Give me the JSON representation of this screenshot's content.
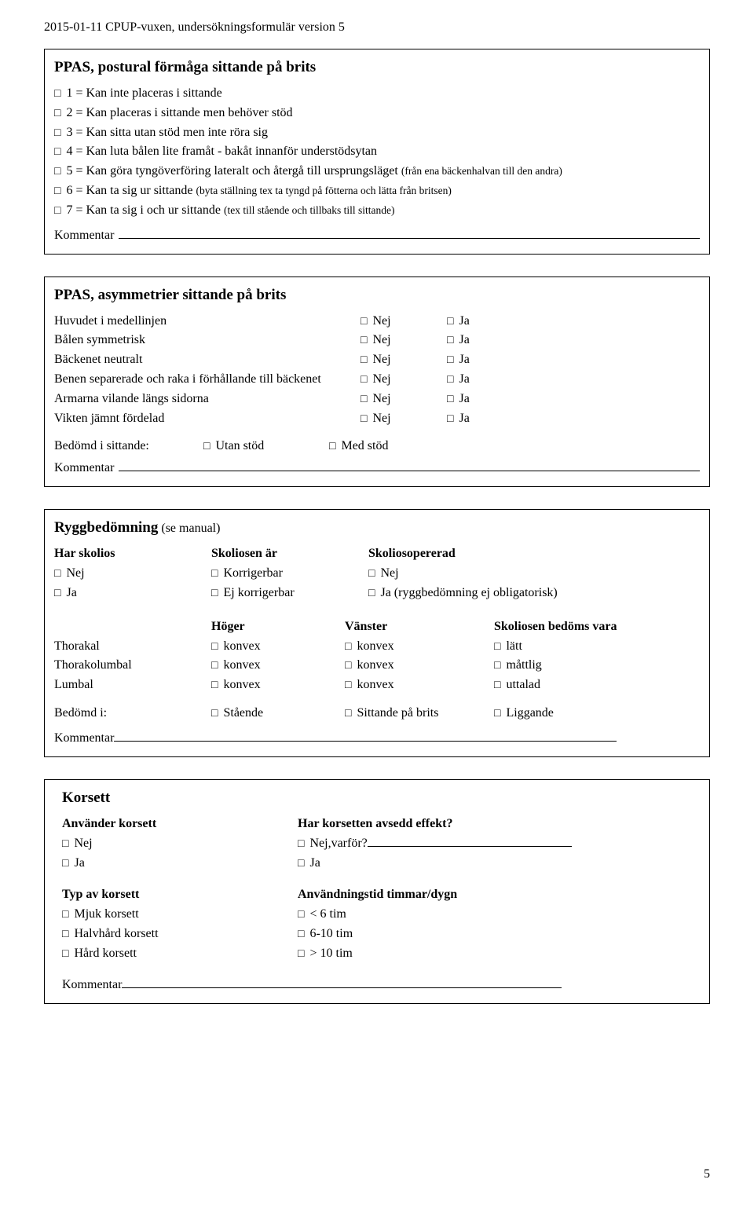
{
  "header": "2015-01-11   CPUP-vuxen, undersökningsformulär version 5",
  "page_number": "5",
  "box1": {
    "title": "PPAS, postural förmåga sittande på brits",
    "opts": [
      {
        "main": "1 = Kan inte placeras i sittande",
        "detail": ""
      },
      {
        "main": "2 = Kan placeras i sittande men behöver stöd",
        "detail": ""
      },
      {
        "main": "3 = Kan sitta utan stöd men inte röra sig",
        "detail": ""
      },
      {
        "main": "4 = Kan luta bålen lite framåt - bakåt innanför understödsytan",
        "detail": ""
      },
      {
        "main": "5 = Kan göra tyngöverföring lateralt och återgå till ursprungsläget ",
        "detail": "(från ena bäckenhalvan till den andra)"
      },
      {
        "main": "6 = Kan ta sig ur sittande ",
        "detail": "(byta ställning tex ta tyngd på fötterna och lätta från britsen)"
      },
      {
        "main": "7 = Kan ta sig i och ur sittande ",
        "detail": "(tex till stående och tillbaks till sittande)"
      }
    ],
    "kommentar": "Kommentar"
  },
  "box2": {
    "title": "PPAS, asymmetrier sittande på brits",
    "rows": [
      {
        "label": "Huvudet i medellinjen",
        "no": "Nej",
        "yes": "Ja"
      },
      {
        "label": "Bålen symmetrisk",
        "no": "Nej",
        "yes": "Ja"
      },
      {
        "label": "Bäckenet neutralt",
        "no": "Nej",
        "yes": "Ja"
      },
      {
        "label": "Benen separerade och raka i förhållande till bäckenet",
        "no": "Nej",
        "yes": "Ja"
      },
      {
        "label": "Armarna vilande längs sidorna",
        "no": "Nej",
        "yes": "Ja"
      },
      {
        "label": "Vikten jämnt fördelad",
        "no": "Nej",
        "yes": "Ja"
      }
    ],
    "bedomd_label": "Bedömd i sittande:",
    "bedomd_opts": [
      "Utan stöd",
      "Med stöd"
    ],
    "kommentar": "Kommentar"
  },
  "box3": {
    "title": "Ryggbedömning",
    "title_suffix": " (se manual)",
    "columns": {
      "a_head": "Har skolios",
      "a_opts": [
        "Nej",
        "Ja"
      ],
      "b_head": "Skoliosen är",
      "b_opts": [
        "Korrigerbar",
        "Ej korrigerbar"
      ],
      "c_head": "Skoliosopererad",
      "c_opts": [
        "Nej",
        "Ja (ryggbedömning ej obligatorisk)"
      ]
    },
    "table": {
      "h1": "",
      "h2": "Höger",
      "h3": "Vänster",
      "h4": "Skoliosen bedöms vara",
      "rows": [
        {
          "label": "Thorakal",
          "hoger": "konvex",
          "vanster": "konvex",
          "sev": "lätt"
        },
        {
          "label": "Thorakolumbal",
          "hoger": "konvex",
          "vanster": "konvex",
          "sev": "måttlig"
        },
        {
          "label": "Lumbal",
          "hoger": "konvex",
          "vanster": "konvex",
          "sev": "uttalad"
        }
      ]
    },
    "bedomd_label": "Bedömd i:",
    "bedomd_opts": [
      "Stående",
      "Sittande på brits",
      "Liggande"
    ],
    "kommentar": "Kommentar"
  },
  "box4": {
    "title": "Korsett",
    "left1_head": "Använder korsett",
    "left1_opts": [
      "Nej",
      "Ja"
    ],
    "right1_head": "Har korsetten avsedd effekt?",
    "right1_opt1": "Nej,varför?",
    "right1_opt2": "Ja",
    "left2_head": "Typ av korsett",
    "left2_opts": [
      "Mjuk korsett",
      "Halvhård korsett",
      "Hård korsett"
    ],
    "right2_head": "Användningstid timmar/dygn",
    "right2_opts": [
      "< 6 tim",
      "6-10 tim",
      "> 10 tim"
    ],
    "kommentar": "Kommentar"
  }
}
